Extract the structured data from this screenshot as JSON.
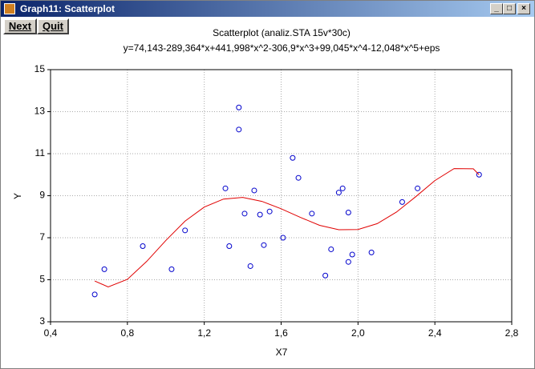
{
  "window": {
    "title": "Graph11: Scatterplot"
  },
  "toolbar": {
    "buttons": [
      "Next",
      "Quit"
    ]
  },
  "chart_data": {
    "type": "scatter",
    "title": "Scatterplot (analiz.STA 15v*30c)",
    "subtitle": "y=74,143-289,364*x+441,998*x^2-306,9*x^3+99,045*x^4-12,048*x^5+eps",
    "x_label": "X7",
    "y_label": "Y",
    "xlim": [
      0.4,
      2.8
    ],
    "xticks": [
      {
        "value": 0.4,
        "label": "0,4"
      },
      {
        "value": 0.8,
        "label": "0,8"
      },
      {
        "value": 1.2,
        "label": "1,2"
      },
      {
        "value": 1.6,
        "label": "1,6"
      },
      {
        "value": 2.0,
        "label": "2,0"
      },
      {
        "value": 2.4,
        "label": "2,4"
      },
      {
        "value": 2.8,
        "label": "2,8"
      }
    ],
    "ylim": [
      3,
      15
    ],
    "yticks": [
      3,
      5,
      7,
      9,
      11,
      13,
      15
    ],
    "grid": true,
    "series": [
      {
        "type": "scatter",
        "color": "#0000cc",
        "x": [
          0.63,
          0.68,
          0.88,
          1.03,
          1.1,
          1.31,
          1.33,
          1.38,
          1.38,
          1.41,
          1.44,
          1.46,
          1.49,
          1.51,
          1.54,
          1.61,
          1.66,
          1.69,
          1.76,
          1.83,
          1.86,
          1.9,
          1.92,
          1.95,
          1.95,
          1.97,
          2.07,
          2.23,
          2.31,
          2.63
        ],
        "values": [
          4.3,
          5.5,
          6.6,
          5.5,
          7.35,
          9.35,
          6.6,
          13.2,
          12.15,
          8.15,
          5.65,
          9.25,
          8.1,
          6.65,
          8.25,
          7.0,
          10.8,
          9.85,
          8.15,
          5.2,
          6.45,
          9.15,
          9.35,
          8.2,
          5.85,
          6.2,
          6.3,
          8.7,
          9.35,
          10.0
        ]
      },
      {
        "type": "line",
        "color": "#e00000",
        "x": [
          0.63,
          0.7,
          0.8,
          0.9,
          1.0,
          1.1,
          1.2,
          1.3,
          1.4,
          1.5,
          1.6,
          1.7,
          1.8,
          1.9,
          2.0,
          2.1,
          2.2,
          2.3,
          2.4,
          2.5,
          2.6,
          2.63
        ],
        "values": [
          4.94,
          4.66,
          5.02,
          5.87,
          6.87,
          7.79,
          8.46,
          8.84,
          8.92,
          8.73,
          8.38,
          7.97,
          7.59,
          7.38,
          7.39,
          7.67,
          8.22,
          8.95,
          9.72,
          10.29,
          10.28,
          10.0
        ]
      }
    ]
  }
}
